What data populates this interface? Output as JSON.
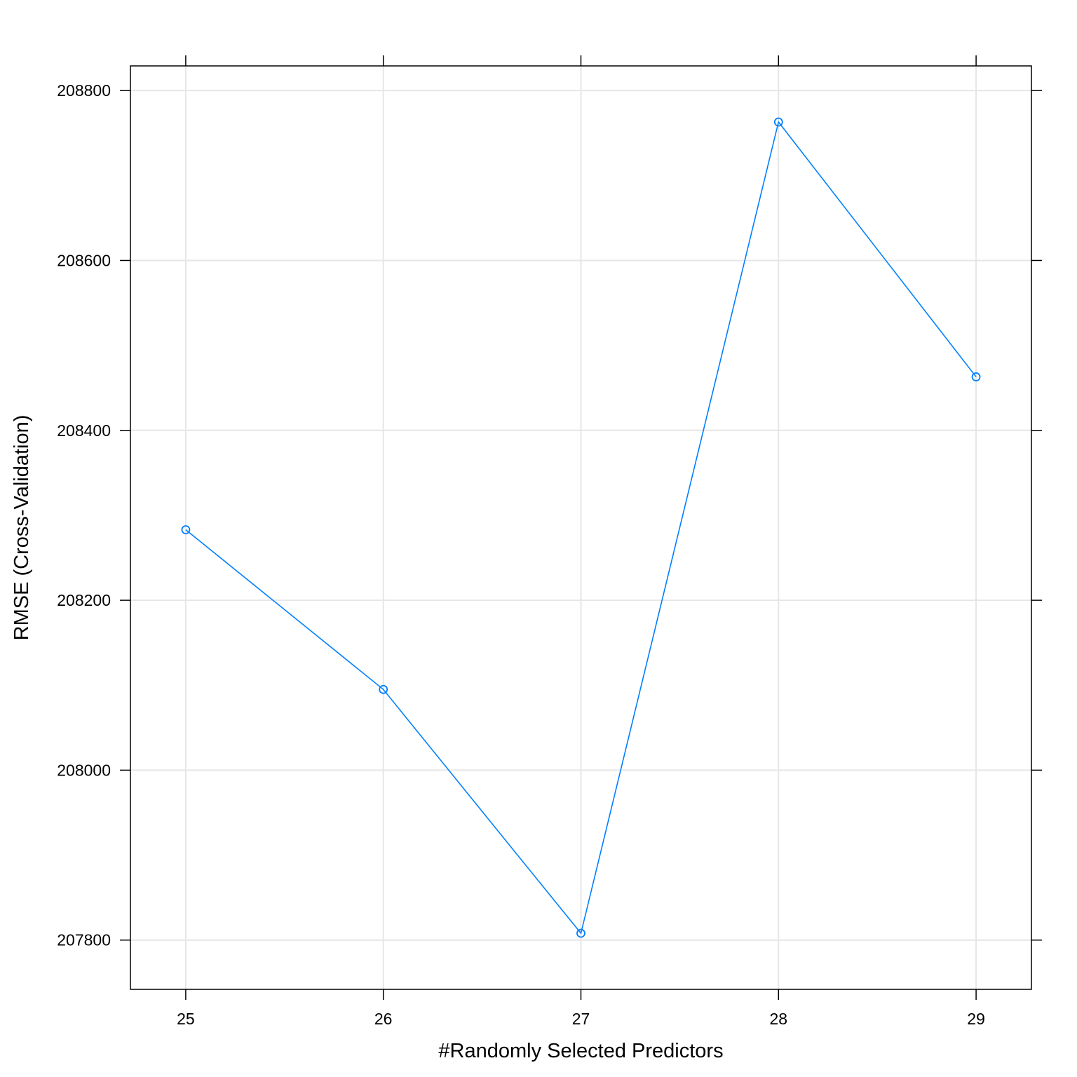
{
  "chart_data": {
    "type": "line",
    "title": "",
    "xlabel": "#Randomly Selected Predictors",
    "ylabel": "RMSE (Cross-Validation)",
    "x": [
      25,
      26,
      27,
      28,
      29
    ],
    "series": [
      {
        "values": [
          208283,
          208095,
          207808,
          208763,
          208463
        ]
      }
    ],
    "xticks": [
      25,
      26,
      27,
      28,
      29
    ],
    "xtick_labels": [
      "25",
      "26",
      "27",
      "28",
      "29"
    ],
    "yticks": [
      207800,
      208000,
      208200,
      208400,
      208600,
      208800
    ],
    "ytick_labels": [
      "207800",
      "208000",
      "208200",
      "208400",
      "208600",
      "208800"
    ],
    "xlim": [
      24.72,
      29.28
    ],
    "ylim": [
      207742,
      208829
    ],
    "grid": true,
    "marker": "open-circle",
    "line_color": "#0080ff",
    "grid_color": "#e6e6e6",
    "frame_color": "#000000"
  }
}
